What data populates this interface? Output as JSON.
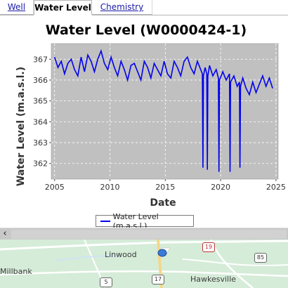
{
  "tabs": [
    {
      "label": "Well",
      "active": false
    },
    {
      "label": "Water Level",
      "active": true
    },
    {
      "label": "Chemistry",
      "active": false
    }
  ],
  "chart_data": {
    "type": "line",
    "title": "Water Level (W0000424-1)",
    "xlabel": "Date",
    "ylabel": "Water Level (m.a.s.l.)",
    "xlim": [
      2004.7,
      2025.2
    ],
    "ylim": [
      361.25,
      367.75
    ],
    "xticks": [
      "2005",
      "2010",
      "2015",
      "2020",
      "2025"
    ],
    "yticks": [
      "362",
      "363",
      "364",
      "365",
      "366",
      "367"
    ],
    "grid": true,
    "series": [
      {
        "name": "Water Level (m.a.s.l.)",
        "color": "#0000ee",
        "x": [
          2005.0,
          2005.3,
          2005.6,
          2005.9,
          2006.2,
          2006.5,
          2006.8,
          2007.1,
          2007.4,
          2007.7,
          2008.0,
          2008.3,
          2008.6,
          2008.9,
          2009.2,
          2009.5,
          2009.8,
          2010.1,
          2010.4,
          2010.7,
          2011.0,
          2011.3,
          2011.6,
          2011.9,
          2012.2,
          2012.5,
          2012.8,
          2013.1,
          2013.4,
          2013.7,
          2014.0,
          2014.3,
          2014.6,
          2014.9,
          2015.2,
          2015.5,
          2015.8,
          2016.1,
          2016.4,
          2016.7,
          2017.0,
          2017.3,
          2017.6,
          2017.9,
          2018.2,
          2018.35,
          2018.4,
          2018.45,
          2018.6,
          2018.75,
          2018.8,
          2018.85,
          2019.0,
          2019.3,
          2019.6,
          2019.8,
          2019.85,
          2019.9,
          2020.2,
          2020.5,
          2020.8,
          2020.85,
          2020.9,
          2021.2,
          2021.5,
          2021.7,
          2021.75,
          2021.8,
          2022.0,
          2022.3,
          2022.6,
          2022.9,
          2023.2,
          2023.5,
          2023.8,
          2024.1,
          2024.4,
          2024.7
        ],
        "y": [
          367.1,
          366.6,
          366.9,
          366.3,
          366.8,
          367.0,
          366.5,
          366.2,
          367.1,
          366.4,
          367.2,
          366.9,
          366.4,
          367.0,
          367.4,
          366.8,
          366.5,
          367.1,
          366.6,
          366.2,
          366.9,
          366.5,
          366.0,
          366.7,
          366.8,
          366.4,
          366.0,
          366.9,
          366.6,
          366.1,
          366.8,
          366.5,
          366.2,
          366.9,
          366.3,
          366.1,
          366.9,
          366.6,
          366.2,
          366.9,
          367.1,
          366.6,
          366.3,
          366.9,
          366.5,
          366.3,
          361.8,
          366.2,
          366.6,
          366.3,
          361.7,
          366.2,
          366.7,
          366.2,
          366.5,
          366.1,
          361.6,
          366.0,
          366.4,
          366.0,
          366.3,
          361.6,
          365.9,
          366.2,
          365.7,
          365.9,
          361.8,
          365.7,
          366.1,
          365.6,
          365.3,
          365.9,
          365.4,
          365.8,
          366.2,
          365.7,
          366.1,
          365.6
        ]
      }
    ]
  },
  "map": {
    "places": [
      "Linwood",
      "Millbank",
      "Hawkesville"
    ],
    "routes": [
      "19",
      "85",
      "5",
      "17"
    ]
  }
}
